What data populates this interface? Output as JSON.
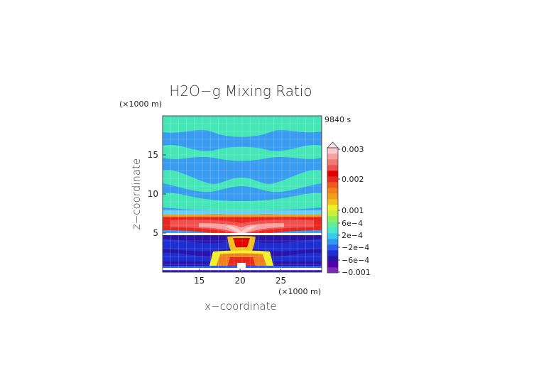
{
  "chart_data": {
    "type": "heatmap",
    "title": "H2O−g Mixing Ratio",
    "time_label": "9840 s",
    "xlabel": "x−coordinate",
    "ylabel": "z−coordinate",
    "x_unit": "(×1000 m)",
    "z_unit": "(×1000 m)",
    "xlim": [
      10.5,
      30
    ],
    "zlim": [
      0,
      20
    ],
    "x_ticks": [
      "15",
      "20",
      "25"
    ],
    "z_ticks": [
      "5",
      "10",
      "15"
    ],
    "grid": true,
    "colorbar": {
      "labels": [
        "0.003",
        "0.002",
        "0.001",
        "6e−4",
        "2e−4",
        "−2e−4",
        "−6e−4",
        "−0.001"
      ],
      "colors": [
        "#7a2bb8",
        "#5500a8",
        "#2a14a8",
        "#1e2ed0",
        "#2b5ff0",
        "#2b9cf0",
        "#3ac8f0",
        "#45e8c8",
        "#62ec9a",
        "#8cf05a",
        "#c8f03a",
        "#f0f02a",
        "#f0c020",
        "#f0a018",
        "#f08020",
        "#f05a1e",
        "#e8281e",
        "#e00000",
        "#f05050",
        "#f07878",
        "#f8a0a0",
        "#fccaca"
      ],
      "overflow_color": "#ffe0e0"
    }
  }
}
